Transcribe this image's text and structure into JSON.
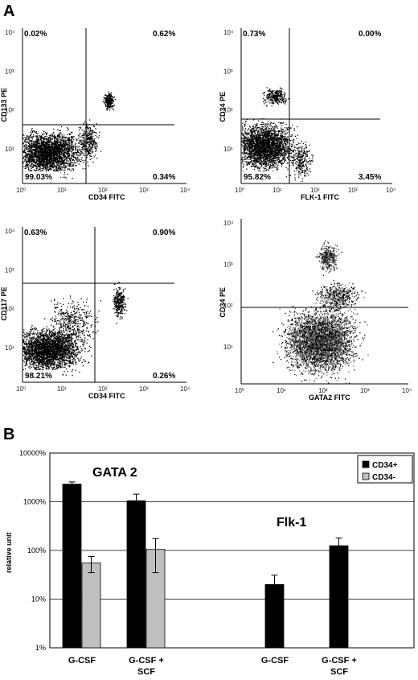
{
  "panel_a": {
    "letter": "A",
    "plots": [
      {
        "name": "cd133-vs-cd34",
        "ylabel": "CD133 PE",
        "xlabel": "CD34 FITC",
        "quadrants": {
          "ul": "0.02%",
          "ur": "0.62%",
          "ll": "99.03%",
          "lr": "0.34%"
        },
        "yticks": [
          "10⁴",
          "10³",
          "10²",
          "10¹"
        ],
        "xticks": [
          "10⁰",
          "10¹",
          "10²",
          "10³",
          "10⁴"
        ]
      },
      {
        "name": "cd34-vs-flk1",
        "ylabel": "CD34 PE",
        "xlabel": "FLK-1 FITC",
        "quadrants": {
          "ul": "0.73%",
          "ur": "0.00%",
          "ll": "95.82%",
          "lr": "3.45%"
        },
        "yticks": [
          "10⁴",
          "10³",
          "10²",
          "10¹"
        ],
        "xticks": [
          "10⁰",
          "10¹",
          "10²",
          "10³",
          "10⁴"
        ]
      },
      {
        "name": "cd117-vs-cd34",
        "ylabel": "CD117 PE",
        "xlabel": "CD34 FITC",
        "quadrants": {
          "ul": "0.63%",
          "ur": "0.90%",
          "ll": "98.21%",
          "lr": "0.26%"
        },
        "yticks": [
          "10⁴",
          "10³",
          "10²",
          "10¹"
        ],
        "xticks": [
          "10⁰",
          "10¹",
          "10²",
          "10³",
          "10⁴"
        ]
      },
      {
        "name": "cd34-vs-gata2",
        "ylabel": "CD34 PE",
        "xlabel": "GATA2 FITC",
        "quadrants": {
          "ul": "",
          "ur": "",
          "ll": "",
          "lr": ""
        },
        "yticks": [
          "10⁴",
          "10³",
          "10²",
          "10¹"
        ],
        "xticks": [
          "10⁰",
          "10¹",
          "10²",
          "10³",
          "10⁴"
        ]
      }
    ]
  },
  "chart_data": {
    "type": "bar",
    "letter": "B",
    "ylabel": "relative unit",
    "yscale": "log",
    "ylim": [
      1,
      10000
    ],
    "yticks": [
      "10000%",
      "1000%",
      "100%",
      "10%",
      "1%"
    ],
    "grid": true,
    "legend_position": "top-right",
    "annotations": [
      "GATA 2",
      "Flk-1"
    ],
    "categories": [
      "G-CSF",
      "G-CSF + SCF",
      "G-CSF",
      "G-CSF + SCF"
    ],
    "series": [
      {
        "name": "CD34+",
        "color": "#000000",
        "values": [
          2300,
          1050,
          20,
          125
        ],
        "errors": [
          250,
          380,
          11,
          55
        ]
      },
      {
        "name": "CD34-",
        "color": "#bfbfbf",
        "values": [
          55,
          105,
          null,
          null
        ],
        "errors": [
          20,
          70,
          null,
          null
        ]
      }
    ]
  }
}
